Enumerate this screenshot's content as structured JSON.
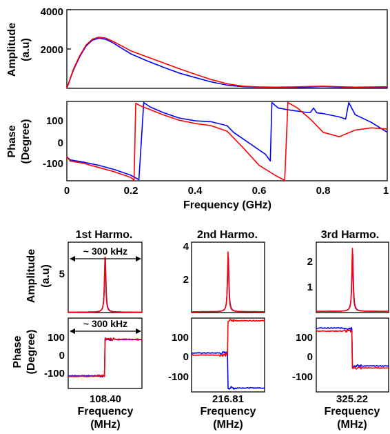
{
  "chart_data": [
    {
      "type": "line",
      "panel": "top-amplitude",
      "ylabel_lines": [
        "Amplitude",
        "(a.u)"
      ],
      "xlim": [
        0,
        1
      ],
      "ylim": [
        0,
        4000
      ],
      "yticks": [
        2000,
        4000
      ],
      "ytick_labels": [
        "2000",
        "4000"
      ],
      "series": [
        {
          "color": "#0000ff",
          "x": [
            0,
            0.02,
            0.04,
            0.06,
            0.08,
            0.1,
            0.12,
            0.14,
            0.16,
            0.18,
            0.2,
            0.25,
            0.3,
            0.35,
            0.4,
            0.45,
            0.5,
            0.55,
            0.6,
            0.65,
            0.7,
            0.75,
            0.8,
            0.85,
            0.9,
            0.95,
            1.0
          ],
          "y": [
            0,
            900,
            1600,
            2150,
            2450,
            2550,
            2500,
            2350,
            2150,
            1950,
            1750,
            1400,
            1080,
            780,
            550,
            330,
            160,
            80,
            60,
            50,
            40,
            60,
            90,
            60,
            40,
            30,
            20
          ]
        },
        {
          "color": "#ff0000",
          "x": [
            0,
            0.02,
            0.04,
            0.06,
            0.08,
            0.1,
            0.12,
            0.14,
            0.16,
            0.18,
            0.2,
            0.25,
            0.3,
            0.35,
            0.4,
            0.45,
            0.5,
            0.55,
            0.6,
            0.65,
            0.7,
            0.75,
            0.8,
            0.85,
            0.9,
            0.95,
            1.0
          ],
          "y": [
            0,
            950,
            1650,
            2200,
            2500,
            2600,
            2560,
            2420,
            2250,
            2080,
            1900,
            1600,
            1300,
            1000,
            720,
            450,
            230,
            110,
            70,
            60,
            70,
            90,
            110,
            80,
            60,
            70,
            80
          ]
        }
      ]
    },
    {
      "type": "line",
      "panel": "top-phase",
      "ylabel_lines": [
        "Phase",
        "(Degree)"
      ],
      "xlabel": "Frequency (GHz)",
      "xlim": [
        0,
        1
      ],
      "ylim": [
        -180,
        180
      ],
      "yticks": [
        100,
        0,
        -100
      ],
      "ytick_labels": [
        "100",
        "0",
        "-100"
      ],
      "xticks": [
        0,
        0.2,
        0.4,
        0.6,
        0.8,
        1
      ],
      "xtick_labels": [
        "0",
        "0.2",
        "0.4",
        "0.6",
        "0.8",
        "1"
      ],
      "series": [
        {
          "color": "#0000ff",
          "x": [
            0,
            0.01,
            0.05,
            0.1,
            0.15,
            0.2,
            0.225,
            0.24,
            0.26,
            0.3,
            0.35,
            0.4,
            0.45,
            0.5,
            0.52,
            0.55,
            0.58,
            0.6,
            0.62,
            0.635,
            0.64,
            0.66,
            0.7,
            0.75,
            0.76,
            0.77,
            0.78,
            0.8,
            0.85,
            0.87,
            0.88,
            0.9,
            0.95,
            1.0
          ],
          "y": [
            -70,
            -85,
            -95,
            -110,
            -130,
            -155,
            -175,
            175,
            155,
            130,
            105,
            92,
            88,
            70,
            40,
            10,
            -20,
            -40,
            -60,
            -90,
            175,
            150,
            140,
            130,
            130,
            150,
            128,
            125,
            110,
            100,
            175,
            120,
            85,
            40
          ]
        },
        {
          "color": "#ff0000",
          "x": [
            0,
            0.01,
            0.05,
            0.1,
            0.15,
            0.2,
            0.21,
            0.215,
            0.23,
            0.3,
            0.35,
            0.4,
            0.45,
            0.5,
            0.55,
            0.6,
            0.65,
            0.68,
            0.69,
            0.72,
            0.76,
            0.8,
            0.85,
            0.9,
            0.95,
            1.0
          ],
          "y": [
            -70,
            -90,
            -100,
            -120,
            -140,
            -165,
            -178,
            172,
            160,
            120,
            95,
            80,
            70,
            45,
            -30,
            -110,
            -155,
            -178,
            175,
            150,
            100,
            40,
            20,
            50,
            60,
            55
          ]
        }
      ]
    },
    {
      "type": "line",
      "panel": "1st-amplitude",
      "title": "1st Harmo.",
      "ylabel_lines": [
        "Amplitude",
        "(a.u)"
      ],
      "annotation": "~ 300 kHz",
      "ylim": [
        0,
        9
      ],
      "yticks": [
        5
      ],
      "ytick_labels": [
        "5"
      ],
      "series": [
        {
          "color": "#0000ff",
          "peak": 7.2
        },
        {
          "color": "#ff0000",
          "peak": 7.5
        }
      ]
    },
    {
      "type": "line",
      "panel": "2nd-amplitude",
      "title": "2nd Harmo.",
      "ylim": [
        0,
        4.3
      ],
      "yticks": [
        2,
        4
      ],
      "ytick_labels": [
        "2",
        "4"
      ],
      "series": [
        {
          "color": "#0000ff",
          "peak": 3.5
        },
        {
          "color": "#ff0000",
          "peak": 3.65
        }
      ]
    },
    {
      "type": "line",
      "panel": "3rd-amplitude",
      "title": "3rd Harmo.",
      "ylim": [
        0,
        2.9
      ],
      "yticks": [
        1,
        2
      ],
      "ytick_labels": [
        "1",
        "2"
      ],
      "series": [
        {
          "color": "#0000ff",
          "peak": 2.5
        },
        {
          "color": "#ff0000",
          "peak": 2.6
        }
      ]
    },
    {
      "type": "line",
      "panel": "1st-phase",
      "ylabel_lines": [
        "Phase",
        "(Degree)"
      ],
      "annotation": "~ 300 kHz",
      "xlabel_lines": [
        "108.40",
        "Frequency",
        "(MHz)"
      ],
      "ylim": [
        -180,
        180
      ],
      "yticks": [
        100,
        0,
        -100
      ],
      "ytick_labels": [
        "100",
        "0",
        "-100"
      ],
      "series": [
        {
          "color": "#0000ff",
          "left": -115,
          "right": 70
        },
        {
          "color": "#ff0000",
          "left": -118,
          "right": 72
        }
      ]
    },
    {
      "type": "line",
      "panel": "2nd-phase",
      "xlabel_lines": [
        "216.81",
        "Frequency",
        "(MHz)"
      ],
      "ylim": [
        -185,
        185
      ],
      "yticks": [
        100,
        0,
        -100
      ],
      "ytick_labels": [
        "100",
        "0",
        "-100"
      ],
      "series": [
        {
          "color": "#0000ff",
          "left": 10,
          "right": -165
        },
        {
          "color": "#ff0000",
          "left": 0,
          "right": 172
        }
      ]
    },
    {
      "type": "line",
      "panel": "3rd-phase",
      "xlabel_lines": [
        "325.22",
        "Frequency",
        "(MHz)"
      ],
      "ylim": [
        -185,
        185
      ],
      "yticks": [
        100,
        0,
        -100
      ],
      "ytick_labels": [
        "100",
        "0",
        "-100"
      ],
      "series": [
        {
          "color": "#0000ff",
          "left": 135,
          "right": -55
        },
        {
          "color": "#ff0000",
          "left": 120,
          "right": -65
        }
      ]
    }
  ]
}
